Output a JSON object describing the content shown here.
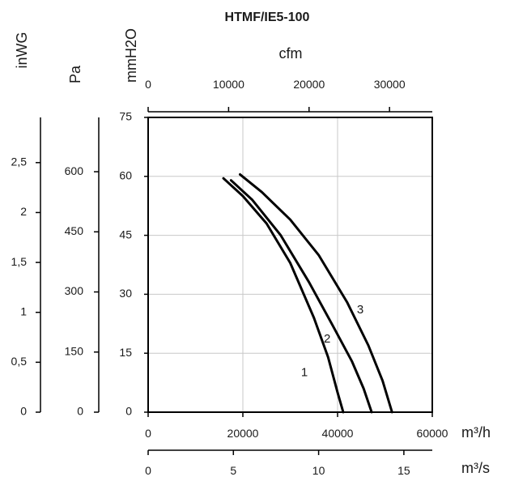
{
  "chart_data": {
    "type": "line",
    "title": "HTMF/IE5-100",
    "grid": true,
    "primary_x": {
      "unit": "m³/h",
      "range": [
        0,
        60000
      ],
      "ticks": [
        "0",
        "20000",
        "40000",
        "60000"
      ]
    },
    "secondary_x": [
      {
        "unit": "m³/s",
        "range": [
          0,
          16.667
        ],
        "values": [
          0,
          5,
          10,
          15
        ],
        "ticks": [
          "0",
          "5",
          "10",
          "15"
        ]
      },
      {
        "unit": "cfm",
        "range": [
          0,
          35315
        ],
        "values": [
          0,
          10000,
          20000,
          30000
        ],
        "ticks": [
          "0",
          "10000",
          "20000",
          "30000"
        ]
      }
    ],
    "primary_y": {
      "unit": "mmH2O",
      "range": [
        0,
        75
      ],
      "ticks": [
        "0",
        "15",
        "30",
        "45",
        "60",
        "75"
      ]
    },
    "secondary_y": [
      {
        "unit": "Pa",
        "values": [
          0,
          150,
          300,
          450,
          600
        ],
        "ticks": [
          "0",
          "150",
          "300",
          "450",
          "600"
        ]
      },
      {
        "unit": "inWG",
        "values": [
          0,
          0.5,
          1,
          1.5,
          2,
          2.5
        ],
        "ticks": [
          "0",
          "0,5",
          "1",
          "1,5",
          "2",
          "2,5"
        ]
      }
    ],
    "series": [
      {
        "name": "1",
        "points": [
          [
            15900,
            59.5
          ],
          [
            20000,
            55
          ],
          [
            25000,
            48
          ],
          [
            30000,
            38
          ],
          [
            35000,
            24
          ],
          [
            38000,
            14
          ],
          [
            40000,
            5
          ],
          [
            41200,
            0
          ]
        ]
      },
      {
        "name": "2",
        "points": [
          [
            17500,
            59
          ],
          [
            22000,
            54
          ],
          [
            28000,
            45
          ],
          [
            34000,
            33
          ],
          [
            39000,
            22
          ],
          [
            43000,
            13
          ],
          [
            45500,
            6
          ],
          [
            47200,
            0
          ]
        ]
      },
      {
        "name": "3",
        "points": [
          [
            19400,
            60.5
          ],
          [
            24000,
            56
          ],
          [
            30000,
            49
          ],
          [
            36000,
            40
          ],
          [
            42000,
            28
          ],
          [
            46500,
            17
          ],
          [
            49500,
            8
          ],
          [
            51500,
            0
          ]
        ]
      }
    ],
    "curve_labels": [
      {
        "text": "1",
        "x": 33000,
        "y": 10
      },
      {
        "text": "2",
        "x": 37800,
        "y": 18.5
      },
      {
        "text": "3",
        "x": 44800,
        "y": 26
      }
    ]
  }
}
